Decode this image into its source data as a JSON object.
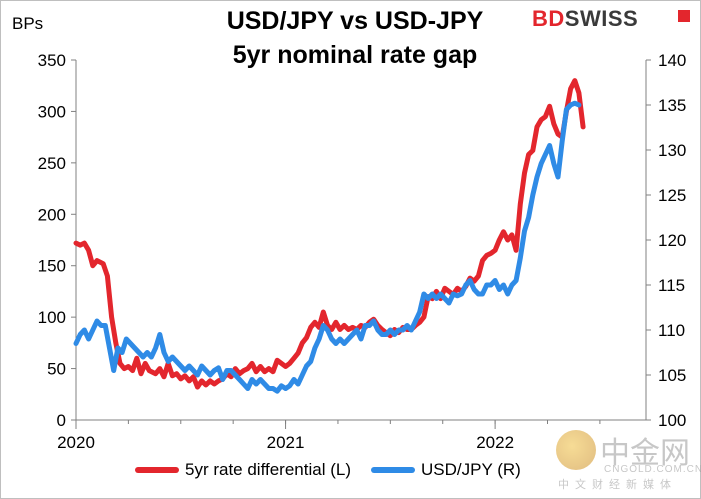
{
  "header": {
    "title_line1": "USD/JPY vs USD-JPY",
    "title_line2": "5yr nominal rate gap",
    "left_unit": "BPs",
    "brand_part1": "BD",
    "brand_part2": "SWISS"
  },
  "watermark": {
    "text_cn": "中金网",
    "text_en": "CNGOLD.COM.CN",
    "text_sub": "中文财经新媒体"
  },
  "colors": {
    "series_left": "#e3262d",
    "series_right": "#2f8be6",
    "axis": "#808080",
    "brand_red": "#e3262d"
  },
  "chart_data": {
    "type": "line",
    "title": "USD/JPY vs USD-JPY 5yr nominal rate gap",
    "xlabel": "",
    "ylabel_left": "BPs",
    "ylabel_right": "",
    "x_ticks": [
      "2020",
      "2021",
      "2022"
    ],
    "x_range": [
      2020.0,
      2022.72
    ],
    "y_left_range": [
      0,
      350
    ],
    "y_left_ticks": [
      0,
      50,
      100,
      150,
      200,
      250,
      300,
      350
    ],
    "y_right_range": [
      100,
      140
    ],
    "y_right_ticks": [
      100,
      105,
      110,
      115,
      120,
      125,
      130,
      135,
      140
    ],
    "grid": false,
    "legend_position": "bottom",
    "series": [
      {
        "name": "5yr rate differential (L)",
        "axis": "left",
        "points": [
          [
            2020.0,
            172
          ],
          [
            2020.02,
            170
          ],
          [
            2020.04,
            172
          ],
          [
            2020.06,
            165
          ],
          [
            2020.08,
            150
          ],
          [
            2020.1,
            155
          ],
          [
            2020.13,
            152
          ],
          [
            2020.15,
            140
          ],
          [
            2020.17,
            100
          ],
          [
            2020.19,
            75
          ],
          [
            2020.21,
            55
          ],
          [
            2020.23,
            50
          ],
          [
            2020.25,
            52
          ],
          [
            2020.27,
            48
          ],
          [
            2020.29,
            60
          ],
          [
            2020.31,
            45
          ],
          [
            2020.33,
            55
          ],
          [
            2020.35,
            48
          ],
          [
            2020.38,
            45
          ],
          [
            2020.4,
            50
          ],
          [
            2020.42,
            42
          ],
          [
            2020.44,
            55
          ],
          [
            2020.46,
            43
          ],
          [
            2020.48,
            45
          ],
          [
            2020.5,
            40
          ],
          [
            2020.52,
            43
          ],
          [
            2020.54,
            38
          ],
          [
            2020.56,
            42
          ],
          [
            2020.58,
            32
          ],
          [
            2020.6,
            38
          ],
          [
            2020.62,
            34
          ],
          [
            2020.64,
            38
          ],
          [
            2020.66,
            35
          ],
          [
            2020.68,
            38
          ],
          [
            2020.7,
            40
          ],
          [
            2020.72,
            45
          ],
          [
            2020.74,
            42
          ],
          [
            2020.76,
            50
          ],
          [
            2020.78,
            45
          ],
          [
            2020.8,
            48
          ],
          [
            2020.82,
            50
          ],
          [
            2020.84,
            55
          ],
          [
            2020.86,
            47
          ],
          [
            2020.88,
            52
          ],
          [
            2020.9,
            47
          ],
          [
            2020.92,
            50
          ],
          [
            2020.94,
            47
          ],
          [
            2020.96,
            58
          ],
          [
            2020.98,
            55
          ],
          [
            2021.0,
            52
          ],
          [
            2021.02,
            55
          ],
          [
            2021.04,
            60
          ],
          [
            2021.06,
            65
          ],
          [
            2021.08,
            75
          ],
          [
            2021.1,
            80
          ],
          [
            2021.12,
            90
          ],
          [
            2021.14,
            95
          ],
          [
            2021.16,
            90
          ],
          [
            2021.18,
            105
          ],
          [
            2021.2,
            92
          ],
          [
            2021.22,
            88
          ],
          [
            2021.24,
            95
          ],
          [
            2021.26,
            88
          ],
          [
            2021.28,
            92
          ],
          [
            2021.3,
            88
          ],
          [
            2021.32,
            90
          ],
          [
            2021.34,
            88
          ],
          [
            2021.36,
            92
          ],
          [
            2021.38,
            90
          ],
          [
            2021.4,
            95
          ],
          [
            2021.42,
            98
          ],
          [
            2021.44,
            92
          ],
          [
            2021.46,
            88
          ],
          [
            2021.48,
            85
          ],
          [
            2021.5,
            82
          ],
          [
            2021.52,
            88
          ],
          [
            2021.54,
            85
          ],
          [
            2021.56,
            90
          ],
          [
            2021.58,
            88
          ],
          [
            2021.6,
            88
          ],
          [
            2021.62,
            92
          ],
          [
            2021.64,
            95
          ],
          [
            2021.66,
            100
          ],
          [
            2021.68,
            120
          ],
          [
            2021.7,
            118
          ],
          [
            2021.72,
            125
          ],
          [
            2021.74,
            118
          ],
          [
            2021.76,
            128
          ],
          [
            2021.78,
            125
          ],
          [
            2021.8,
            122
          ],
          [
            2021.82,
            128
          ],
          [
            2021.84,
            125
          ],
          [
            2021.86,
            130
          ],
          [
            2021.88,
            138
          ],
          [
            2021.9,
            135
          ],
          [
            2021.92,
            140
          ],
          [
            2021.94,
            155
          ],
          [
            2021.96,
            160
          ],
          [
            2021.98,
            162
          ],
          [
            2022.0,
            165
          ],
          [
            2022.02,
            175
          ],
          [
            2022.04,
            183
          ],
          [
            2022.06,
            175
          ],
          [
            2022.08,
            180
          ],
          [
            2022.1,
            165
          ],
          [
            2022.12,
            210
          ],
          [
            2022.14,
            240
          ],
          [
            2022.16,
            258
          ],
          [
            2022.18,
            262
          ],
          [
            2022.2,
            285
          ],
          [
            2022.22,
            292
          ],
          [
            2022.24,
            295
          ],
          [
            2022.26,
            305
          ],
          [
            2022.28,
            288
          ],
          [
            2022.3,
            278
          ],
          [
            2022.32,
            275
          ],
          [
            2022.34,
            300
          ],
          [
            2022.36,
            322
          ],
          [
            2022.38,
            330
          ],
          [
            2022.4,
            318
          ],
          [
            2022.42,
            285
          ]
        ]
      },
      {
        "name": "USD/JPY (R)",
        "axis": "right",
        "points": [
          [
            2020.0,
            108.5
          ],
          [
            2020.02,
            109.5
          ],
          [
            2020.04,
            110.0
          ],
          [
            2020.06,
            109.0
          ],
          [
            2020.08,
            110.0
          ],
          [
            2020.1,
            111.0
          ],
          [
            2020.12,
            110.5
          ],
          [
            2020.14,
            110.5
          ],
          [
            2020.16,
            108.0
          ],
          [
            2020.18,
            105.5
          ],
          [
            2020.2,
            108.0
          ],
          [
            2020.22,
            107.5
          ],
          [
            2020.24,
            109.0
          ],
          [
            2020.26,
            108.5
          ],
          [
            2020.28,
            108.0
          ],
          [
            2020.3,
            107.5
          ],
          [
            2020.32,
            107.0
          ],
          [
            2020.34,
            107.5
          ],
          [
            2020.36,
            107.0
          ],
          [
            2020.38,
            108.0
          ],
          [
            2020.4,
            109.5
          ],
          [
            2020.42,
            107.5
          ],
          [
            2020.44,
            106.5
          ],
          [
            2020.46,
            107.0
          ],
          [
            2020.48,
            106.5
          ],
          [
            2020.5,
            106.0
          ],
          [
            2020.52,
            105.5
          ],
          [
            2020.54,
            106.0
          ],
          [
            2020.56,
            105.5
          ],
          [
            2020.58,
            105.0
          ],
          [
            2020.6,
            106.0
          ],
          [
            2020.62,
            105.5
          ],
          [
            2020.64,
            105.0
          ],
          [
            2020.66,
            105.5
          ],
          [
            2020.68,
            105.8
          ],
          [
            2020.7,
            104.5
          ],
          [
            2020.72,
            105.5
          ],
          [
            2020.74,
            105.5
          ],
          [
            2020.76,
            105.0
          ],
          [
            2020.78,
            104.5
          ],
          [
            2020.8,
            104.0
          ],
          [
            2020.82,
            103.5
          ],
          [
            2020.84,
            104.5
          ],
          [
            2020.86,
            104.0
          ],
          [
            2020.88,
            104.5
          ],
          [
            2020.9,
            104.0
          ],
          [
            2020.92,
            103.5
          ],
          [
            2020.94,
            103.5
          ],
          [
            2020.96,
            103.2
          ],
          [
            2020.98,
            103.8
          ],
          [
            2021.0,
            103.5
          ],
          [
            2021.02,
            103.8
          ],
          [
            2021.04,
            104.5
          ],
          [
            2021.06,
            104.0
          ],
          [
            2021.08,
            105.0
          ],
          [
            2021.1,
            106.0
          ],
          [
            2021.12,
            106.5
          ],
          [
            2021.14,
            108.0
          ],
          [
            2021.16,
            109.0
          ],
          [
            2021.18,
            110.5
          ],
          [
            2021.2,
            110.0
          ],
          [
            2021.22,
            109.0
          ],
          [
            2021.24,
            108.5
          ],
          [
            2021.26,
            109.0
          ],
          [
            2021.28,
            108.5
          ],
          [
            2021.3,
            109.0
          ],
          [
            2021.32,
            109.5
          ],
          [
            2021.34,
            110.0
          ],
          [
            2021.36,
            109.0
          ],
          [
            2021.38,
            110.5
          ],
          [
            2021.4,
            110.5
          ],
          [
            2021.42,
            111.0
          ],
          [
            2021.44,
            110.0
          ],
          [
            2021.46,
            109.5
          ],
          [
            2021.48,
            109.5
          ],
          [
            2021.5,
            110.0
          ],
          [
            2021.52,
            109.5
          ],
          [
            2021.54,
            110.0
          ],
          [
            2021.56,
            110.0
          ],
          [
            2021.58,
            110.5
          ],
          [
            2021.6,
            110.0
          ],
          [
            2021.62,
            111.0
          ],
          [
            2021.64,
            112.0
          ],
          [
            2021.66,
            114.0
          ],
          [
            2021.68,
            113.5
          ],
          [
            2021.7,
            114.0
          ],
          [
            2021.72,
            113.5
          ],
          [
            2021.74,
            114.0
          ],
          [
            2021.76,
            113.5
          ],
          [
            2021.78,
            113.0
          ],
          [
            2021.8,
            114.0
          ],
          [
            2021.82,
            113.8
          ],
          [
            2021.84,
            114.0
          ],
          [
            2021.86,
            115.0
          ],
          [
            2021.88,
            115.5
          ],
          [
            2021.9,
            114.5
          ],
          [
            2021.92,
            114.0
          ],
          [
            2021.94,
            114.0
          ],
          [
            2021.96,
            115.0
          ],
          [
            2021.98,
            115.0
          ],
          [
            2022.0,
            115.5
          ],
          [
            2022.02,
            114.5
          ],
          [
            2022.04,
            115.0
          ],
          [
            2022.06,
            114.0
          ],
          [
            2022.08,
            115.0
          ],
          [
            2022.1,
            115.5
          ],
          [
            2022.12,
            118.0
          ],
          [
            2022.14,
            121.0
          ],
          [
            2022.16,
            122.5
          ],
          [
            2022.18,
            125.0
          ],
          [
            2022.2,
            127.0
          ],
          [
            2022.22,
            128.5
          ],
          [
            2022.24,
            129.5
          ],
          [
            2022.26,
            130.5
          ],
          [
            2022.28,
            128.5
          ],
          [
            2022.3,
            127.0
          ],
          [
            2022.32,
            131.0
          ],
          [
            2022.34,
            134.5
          ],
          [
            2022.36,
            135.0
          ],
          [
            2022.38,
            135.2
          ],
          [
            2022.4,
            135.0
          ]
        ]
      }
    ]
  }
}
